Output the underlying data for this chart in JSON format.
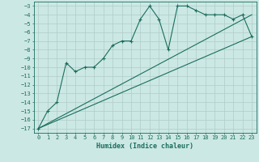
{
  "xlabel": "Humidex (Indice chaleur)",
  "bg_color": "#cce8e4",
  "grid_color": "#b0ccc8",
  "line_color": "#1a6e5e",
  "xlim": [
    -0.5,
    23.5
  ],
  "ylim": [
    -17.5,
    -2.5
  ],
  "xticks": [
    0,
    1,
    2,
    3,
    4,
    5,
    6,
    7,
    8,
    9,
    10,
    11,
    12,
    13,
    14,
    15,
    16,
    17,
    18,
    19,
    20,
    21,
    22,
    23
  ],
  "yticks": [
    -3,
    -4,
    -5,
    -6,
    -7,
    -8,
    -9,
    -10,
    -11,
    -12,
    -13,
    -14,
    -15,
    -16,
    -17
  ],
  "main_x": [
    0,
    1,
    2,
    3,
    4,
    5,
    6,
    7,
    8,
    9,
    10,
    11,
    12,
    13,
    14,
    15,
    16,
    17,
    18,
    19,
    20,
    21,
    22,
    23
  ],
  "main_y": [
    -17,
    -15,
    -14,
    -9.5,
    -10.5,
    -10,
    -10,
    -9,
    -7.5,
    -7,
    -7,
    -4.5,
    -3,
    -4.5,
    -8,
    -3,
    -3,
    -3.5,
    -4,
    -4,
    -4,
    -4.5,
    -4,
    -6.5
  ],
  "line2_x": [
    0,
    23
  ],
  "line2_y": [
    -17,
    -6.5
  ],
  "line3_x": [
    0,
    23
  ],
  "line3_y": [
    -17,
    -4.0
  ]
}
